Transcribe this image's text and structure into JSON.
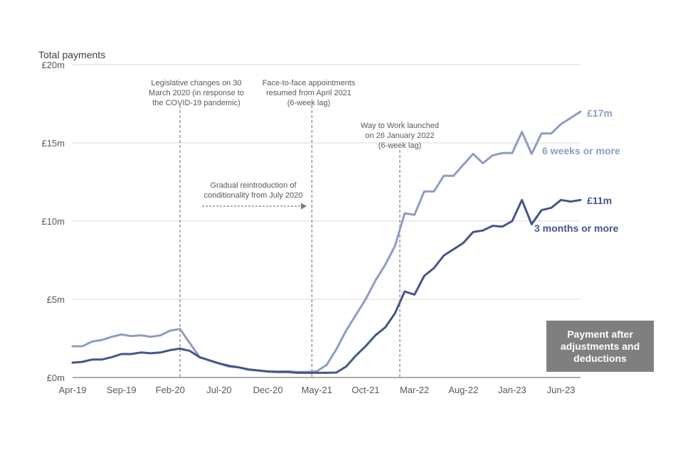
{
  "chart_data": {
    "type": "line",
    "ylabel": "Total payments",
    "ylim": [
      0,
      20
    ],
    "y_ticks": [
      "£0m",
      "£5m",
      "£10m",
      "£15m",
      "£20m"
    ],
    "x_tick_labels": [
      "Apr-19",
      "Sep-19",
      "Feb-20",
      "Jul-20",
      "Dec-20",
      "May-21",
      "Oct-21",
      "Mar-22",
      "Aug-22",
      "Jan-23",
      "Jun-23"
    ],
    "x_tick_indices": [
      0,
      5,
      10,
      15,
      20,
      25,
      30,
      35,
      40,
      45,
      50
    ],
    "n_points": 53,
    "series": [
      {
        "name": "6 weeks or more",
        "color": "#8e9cc4",
        "end_label": "£17m",
        "values": [
          2.0,
          2.0,
          2.3,
          2.4,
          2.6,
          2.75,
          2.65,
          2.7,
          2.6,
          2.7,
          3.0,
          3.1,
          2.2,
          1.3,
          1.1,
          0.9,
          0.7,
          0.65,
          0.5,
          0.45,
          0.4,
          0.38,
          0.4,
          0.35,
          0.35,
          0.4,
          0.8,
          1.8,
          3.0,
          4.0,
          5.0,
          6.2,
          7.2,
          8.4,
          10.5,
          10.4,
          11.9,
          11.9,
          12.9,
          12.9,
          13.6,
          14.3,
          13.7,
          14.2,
          14.35,
          14.35,
          15.7,
          14.3,
          15.6,
          15.6,
          16.2,
          16.6,
          17.0
        ]
      },
      {
        "name": "3 months or more",
        "color": "#44568b",
        "end_label": "£11m",
        "values": [
          0.95,
          1.0,
          1.15,
          1.15,
          1.3,
          1.5,
          1.5,
          1.6,
          1.55,
          1.6,
          1.75,
          1.85,
          1.7,
          1.3,
          1.1,
          0.9,
          0.75,
          0.65,
          0.52,
          0.45,
          0.38,
          0.35,
          0.35,
          0.3,
          0.3,
          0.3,
          0.3,
          0.32,
          0.7,
          1.4,
          2.0,
          2.7,
          3.2,
          4.1,
          5.5,
          5.3,
          6.5,
          7.0,
          7.8,
          8.2,
          8.6,
          9.3,
          9.4,
          9.7,
          9.65,
          10.0,
          11.35,
          9.8,
          10.7,
          10.85,
          11.35,
          11.25,
          11.35
        ]
      }
    ],
    "annotations": {
      "legislative": [
        "Legislative changes on 30",
        "March 2020 (in response to",
        "the COVID-19 pandemic)"
      ],
      "face_to_face": [
        "Face-to-face appointments",
        "resumed from April 2021",
        "(6-week lag)"
      ],
      "way_to_work": [
        "Way to Work launched",
        "on 26 January 2022",
        "(6-week lag)"
      ],
      "gradual": [
        "Gradual reintroduction of",
        "conditionality from July 2020"
      ]
    },
    "vertical_line_indices": [
      11,
      24.5,
      33.5
    ],
    "legend_note": "Payment after adjustments and deductions"
  }
}
